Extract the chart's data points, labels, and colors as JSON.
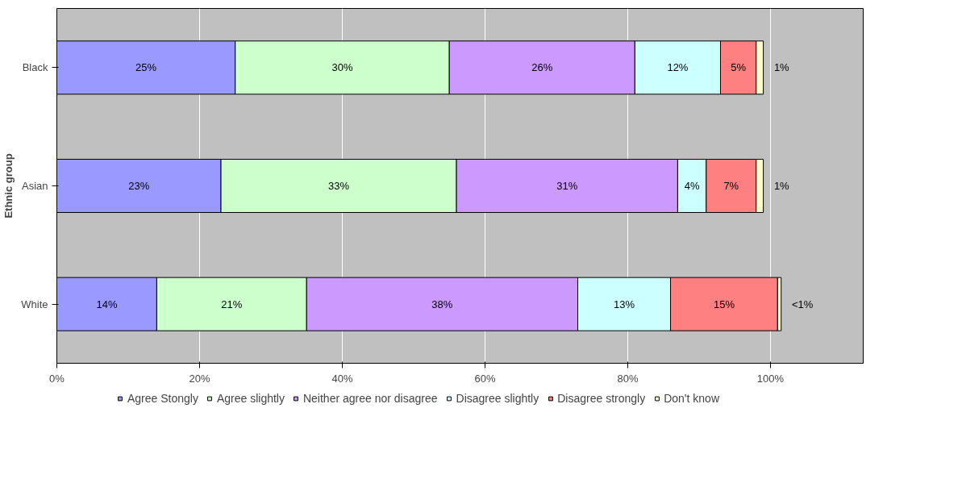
{
  "chart_data": {
    "type": "bar",
    "orientation": "horizontal",
    "stacked": true,
    "ylabel": "Ethnic group",
    "categories": [
      "Black",
      "Asian",
      "White"
    ],
    "series": [
      {
        "name": "Agree Stongly",
        "color": "#9999ff",
        "values": [
          25,
          23,
          14
        ],
        "value_labels": [
          "25%",
          "23%",
          "14%"
        ]
      },
      {
        "name": "Agree slightly",
        "color": "#ccffcc",
        "values": [
          30,
          33,
          21
        ],
        "value_labels": [
          "30%",
          "33%",
          "21%"
        ]
      },
      {
        "name": "Neither agree nor disagree",
        "color": "#cc99ff",
        "values": [
          26,
          31,
          38
        ],
        "value_labels": [
          "26%",
          "31%",
          "38%"
        ]
      },
      {
        "name": "Disagree slightly",
        "color": "#ccffff",
        "values": [
          12,
          4,
          13
        ],
        "value_labels": [
          "12%",
          "4%",
          "13%"
        ]
      },
      {
        "name": "Disagree strongly",
        "color": "#ff8080",
        "values": [
          5,
          7,
          15
        ],
        "value_labels": [
          "5%",
          "7%",
          "15%"
        ]
      },
      {
        "name": "Don't know",
        "color": "#ffffcc",
        "values": [
          1,
          1,
          0.5
        ],
        "value_labels": [
          "1%",
          "1%",
          "<1%"
        ]
      }
    ],
    "xlim": [
      0,
      113
    ],
    "xticks": [
      {
        "value": 0,
        "label": "0%"
      },
      {
        "value": 20,
        "label": "20%"
      },
      {
        "value": 40,
        "label": "40%"
      },
      {
        "value": 60,
        "label": "60%"
      },
      {
        "value": 80,
        "label": "80%"
      },
      {
        "value": 100,
        "label": "100%"
      }
    ],
    "grid": "x",
    "legend": "bottom"
  }
}
